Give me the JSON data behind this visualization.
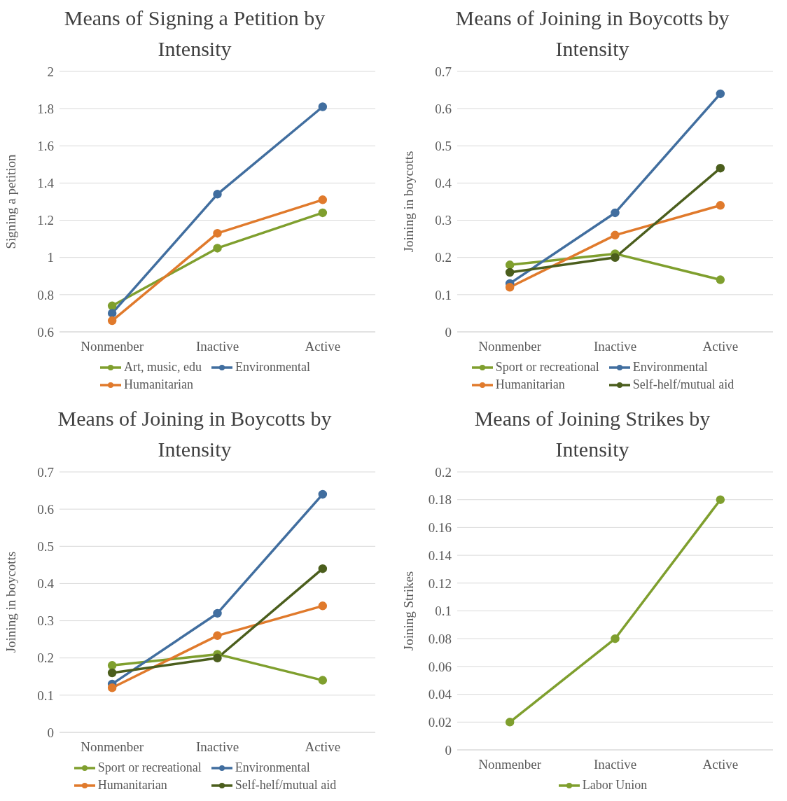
{
  "chart_data": [
    {
      "type": "line",
      "title": "Means of Signing a Petition by Intensity",
      "ylabel": "Signing a petition",
      "categories": [
        "Nonmenber",
        "Inactive",
        "Active"
      ],
      "series": [
        {
          "name": "Art, music, edu",
          "color": "#7f9f2e",
          "values": [
            0.74,
            1.05,
            1.24
          ]
        },
        {
          "name": "Environmental",
          "color": "#416e9f",
          "values": [
            0.7,
            1.34,
            1.81
          ]
        },
        {
          "name": "Humanitarian",
          "color": "#e07a2c",
          "values": [
            0.66,
            1.13,
            1.31
          ]
        }
      ],
      "ylim": [
        0.6,
        2
      ],
      "yticks": [
        0.6,
        0.8,
        1,
        1.2,
        1.4,
        1.6,
        1.8,
        2
      ],
      "grid": "y",
      "legend": "bottom",
      "marker": "circle",
      "line_style": "solid"
    },
    {
      "type": "line",
      "title": "Means of Joining in Boycotts by Intensity",
      "ylabel": "Joining in boycotts",
      "categories": [
        "Nonmenber",
        "Inactive",
        "Active"
      ],
      "series": [
        {
          "name": "Sport or recreational",
          "color": "#7f9f2e",
          "values": [
            0.18,
            0.21,
            0.14
          ]
        },
        {
          "name": "Environmental",
          "color": "#416e9f",
          "values": [
            0.13,
            0.32,
            0.64
          ]
        },
        {
          "name": "Humanitarian",
          "color": "#e07a2c",
          "values": [
            0.12,
            0.26,
            0.34
          ]
        },
        {
          "name": "Self-helf/mutual aid",
          "color": "#4b5e1d",
          "values": [
            0.16,
            0.2,
            0.44
          ]
        }
      ],
      "ylim": [
        0,
        0.7
      ],
      "yticks": [
        0,
        0.1,
        0.2,
        0.3,
        0.4,
        0.5,
        0.6,
        0.7
      ],
      "grid": "y",
      "legend": "bottom",
      "marker": "circle",
      "line_style": "solid"
    },
    {
      "type": "line",
      "title": "Means of Joining in Boycotts by Intensity",
      "ylabel": "Joining in boycotts",
      "categories": [
        "Nonmenber",
        "Inactive",
        "Active"
      ],
      "series": [
        {
          "name": "Sport or recreational",
          "color": "#7f9f2e",
          "values": [
            0.18,
            0.21,
            0.14
          ]
        },
        {
          "name": "Environmental",
          "color": "#416e9f",
          "values": [
            0.13,
            0.32,
            0.64
          ]
        },
        {
          "name": "Humanitarian",
          "color": "#e07a2c",
          "values": [
            0.12,
            0.26,
            0.34
          ]
        },
        {
          "name": "Self-helf/mutual aid",
          "color": "#4b5e1d",
          "values": [
            0.16,
            0.2,
            0.44
          ]
        }
      ],
      "ylim": [
        0,
        0.7
      ],
      "yticks": [
        0,
        0.1,
        0.2,
        0.3,
        0.4,
        0.5,
        0.6,
        0.7
      ],
      "grid": "y",
      "legend": "bottom",
      "marker": "circle",
      "line_style": "solid"
    },
    {
      "type": "line",
      "title": "Means of Joining Strikes by Intensity",
      "ylabel": "Joining Strikes",
      "categories": [
        "Nonmenber",
        "Inactive",
        "Active"
      ],
      "series": [
        {
          "name": "Labor Union",
          "color": "#7f9f2e",
          "values": [
            0.02,
            0.08,
            0.18
          ]
        }
      ],
      "ylim": [
        0,
        0.2
      ],
      "yticks": [
        0,
        0.02,
        0.04,
        0.06,
        0.08,
        0.1,
        0.12,
        0.14,
        0.16,
        0.18,
        0.2
      ],
      "grid": "y",
      "legend": "bottom",
      "marker": "circle",
      "line_style": "solid"
    }
  ]
}
